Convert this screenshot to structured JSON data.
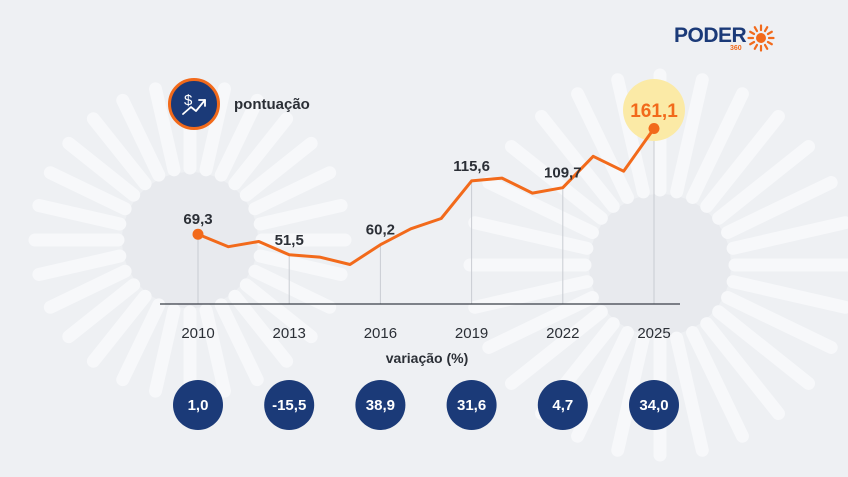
{
  "brand": {
    "name": "PODER",
    "sub": "360",
    "accent": "#f26a1b",
    "navy": "#1b3a78"
  },
  "legend": {
    "label": "pontuação",
    "icon": "money-trend-icon"
  },
  "chart_data": {
    "type": "line",
    "series": [
      {
        "name": "pontuação",
        "x": [
          2010,
          2011,
          2012,
          2013,
          2014,
          2015,
          2016,
          2017,
          2018,
          2019,
          2020,
          2021,
          2022,
          2023,
          2024,
          2025
        ],
        "values": [
          69.3,
          58.5,
          63.0,
          51.5,
          49.5,
          43.0,
          60.2,
          74.0,
          83.0,
          115.6,
          118.0,
          105.0,
          109.7,
          137.0,
          124.0,
          161.1
        ]
      }
    ],
    "labeled_points": [
      {
        "x": 2010,
        "label": "69,3"
      },
      {
        "x": 2013,
        "label": "51,5"
      },
      {
        "x": 2016,
        "label": "60,2"
      },
      {
        "x": 2019,
        "label": "115,6"
      },
      {
        "x": 2022,
        "label": "109,7"
      },
      {
        "x": 2025,
        "label": "161,1",
        "highlight": true
      }
    ],
    "xticks": [
      "2010",
      "2013",
      "2016",
      "2019",
      "2022",
      "2025"
    ],
    "xtick_values": [
      2010,
      2013,
      2016,
      2019,
      2022,
      2025
    ],
    "variation_title": "variação (%)",
    "variations": [
      "1,0",
      "-15,5",
      "38,9",
      "31,6",
      "4,7",
      "34,0"
    ],
    "xlim": [
      2010,
      2025
    ],
    "ylim": [
      40,
      165
    ],
    "title": "",
    "xlabel": "",
    "ylabel": ""
  }
}
